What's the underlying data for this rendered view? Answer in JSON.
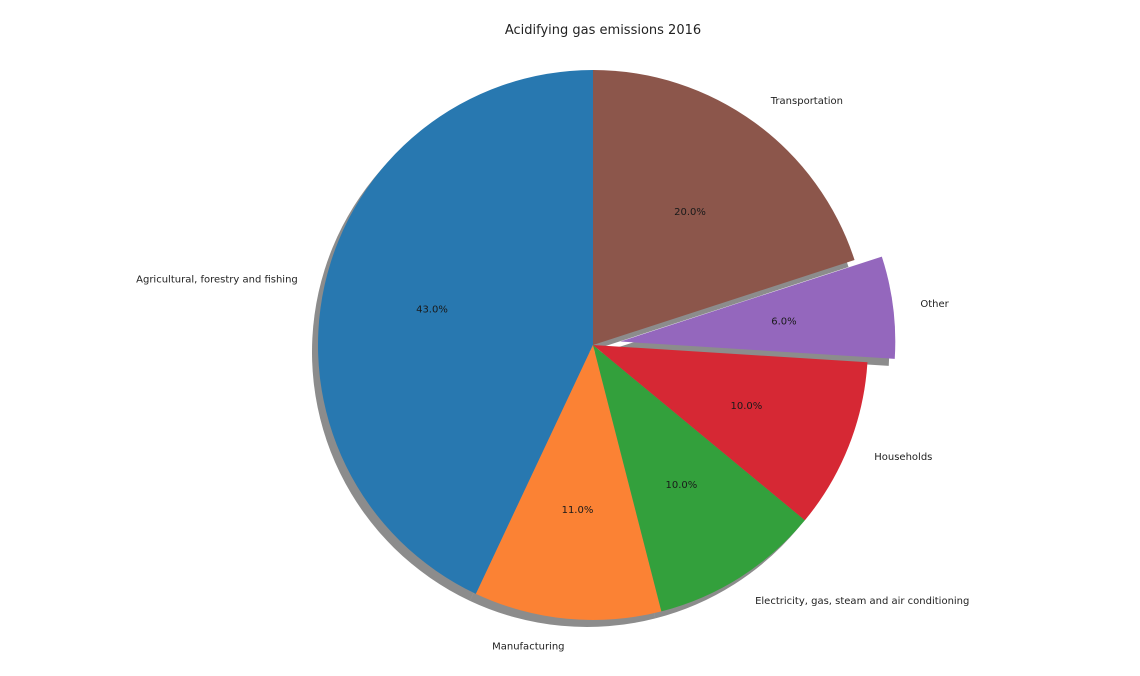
{
  "chart_data": {
    "type": "pie",
    "title": "Acidifying gas emissions 2016",
    "start_angle_deg": 90,
    "direction": "counterclockwise",
    "shadow": true,
    "slices": [
      {
        "label": "Agricultural, forestry and fishing",
        "value": 43.0,
        "pct_label": "43.0%",
        "color": "#2878b0",
        "explode": 0
      },
      {
        "label": "Manufacturing",
        "value": 11.0,
        "pct_label": "11.0%",
        "color": "#fb8234",
        "explode": 0
      },
      {
        "label": "Electricity, gas, steam and air conditioning",
        "value": 10.0,
        "pct_label": "10.0%",
        "color": "#33a03c",
        "explode": 0
      },
      {
        "label": "Households",
        "value": 10.0,
        "pct_label": "10.0%",
        "color": "#d62834",
        "explode": 0
      },
      {
        "label": "Other",
        "value": 6.0,
        "pct_label": "6.0%",
        "color": "#9467bd",
        "explode": 0.1
      },
      {
        "label": "Transportation",
        "value": 20.0,
        "pct_label": "20.0%",
        "color": "#8c564b",
        "explode": 0
      }
    ]
  }
}
